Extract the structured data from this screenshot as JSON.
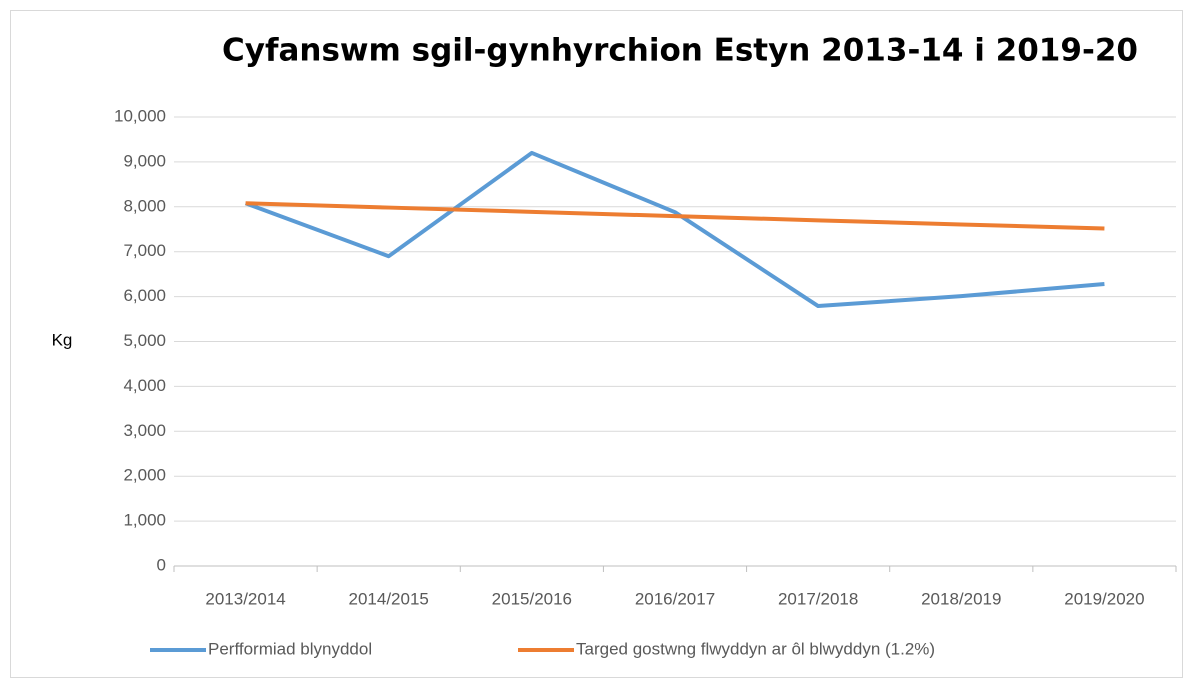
{
  "chart_data": {
    "type": "line",
    "title": "Cyfanswm sgil-gynhyrchion Estyn 2013-14 i 2019-20",
    "y_label": "Kg",
    "categories": [
      "2013/2014",
      "2014/2015",
      "2015/2016",
      "2016/2017",
      "2017/2018",
      "2018/2019",
      "2019/2020"
    ],
    "series": [
      {
        "name": "Perfformiad blynyddol",
        "color": "#5b9bd5",
        "values": [
          8080,
          6900,
          9200,
          7880,
          5790,
          6010,
          6280
        ]
      },
      {
        "name": "Targed gostwng flwyddyn ar ôl blwyddyn (1.2%)",
        "color": "#ed7d31",
        "values": [
          8080,
          7983,
          7887,
          7793,
          7699,
          7607,
          7516
        ]
      }
    ],
    "ylim": [
      0,
      10000
    ],
    "yticks": [
      0,
      {
        "value": 1000,
        "label": "1,000"
      },
      {
        "value": 2000,
        "label": "2,000"
      },
      {
        "value": 3000,
        "label": "3,000"
      },
      {
        "value": 4000,
        "label": "4,000"
      },
      {
        "value": 5000,
        "label": "5,000"
      },
      {
        "value": 6000,
        "label": "6,000"
      },
      {
        "value": 7000,
        "label": "7,000"
      },
      {
        "value": 8000,
        "label": "8,000"
      },
      {
        "value": 9000,
        "label": "9,000"
      },
      {
        "value": 10000,
        "label": "10,000"
      }
    ],
    "grid": true,
    "legend": "bottom"
  }
}
